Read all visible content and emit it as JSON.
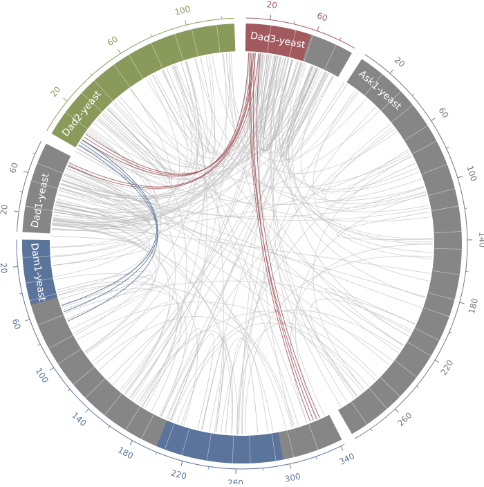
{
  "colors": {
    "grey": "#868686",
    "dad3": "#a35a5f",
    "dad2": "#8a9a5b",
    "dam1": "#5b749c",
    "link_grey": "#c8c8c8",
    "background": "#ffffff"
  },
  "segments": [
    {
      "id": "dad3",
      "label": "Dad3-yeast",
      "length": 94,
      "highlight": "dad3",
      "highlight_range": [
        0,
        56
      ],
      "ticks": [
        {
          "pos": 20,
          "label": "20"
        },
        {
          "pos": 60,
          "label": "60"
        }
      ]
    },
    {
      "id": "ask1",
      "label": "Ask1-yeast",
      "length": 292,
      "ticks": [
        {
          "pos": 20,
          "label": "20"
        },
        {
          "pos": 60,
          "label": "60"
        },
        {
          "pos": 100,
          "label": "100"
        },
        {
          "pos": 140,
          "label": "140"
        },
        {
          "pos": 180,
          "label": "180"
        },
        {
          "pos": 220,
          "label": "220"
        },
        {
          "pos": 260,
          "label": "260"
        }
      ]
    },
    {
      "id": "dam1",
      "label": "Dam1-yeast",
      "length": 343,
      "highlight": "dam1",
      "highlight_range": [
        0,
        50
      ],
      "reverse": true,
      "ticks": [
        {
          "pos": 20,
          "label": "20"
        },
        {
          "pos": 60,
          "label": "60"
        },
        {
          "pos": 100,
          "label": "100"
        },
        {
          "pos": 140,
          "label": "140"
        },
        {
          "pos": 180,
          "label": "180"
        },
        {
          "pos": 220,
          "label": "220"
        },
        {
          "pos": 260,
          "label": "260"
        },
        {
          "pos": 300,
          "label": "300"
        },
        {
          "pos": 340,
          "label": "340"
        }
      ],
      "highlight2": "dam1",
      "highlight2_range": [
        198,
        296
      ]
    },
    {
      "id": "dad1",
      "label": "Dad1-yeast",
      "length": 94,
      "ticks": [
        {
          "pos": 20,
          "label": "20"
        },
        {
          "pos": 60,
          "label": "60"
        }
      ]
    },
    {
      "id": "dad2",
      "label": "Dad2-yeast",
      "length": 127,
      "highlight": "dad2",
      "highlight_range": [
        0,
        127
      ],
      "ticks": [
        {
          "pos": 20,
          "label": "20"
        },
        {
          "pos": 60,
          "label": "60"
        },
        {
          "pos": 100,
          "label": "100"
        }
      ]
    }
  ]
}
